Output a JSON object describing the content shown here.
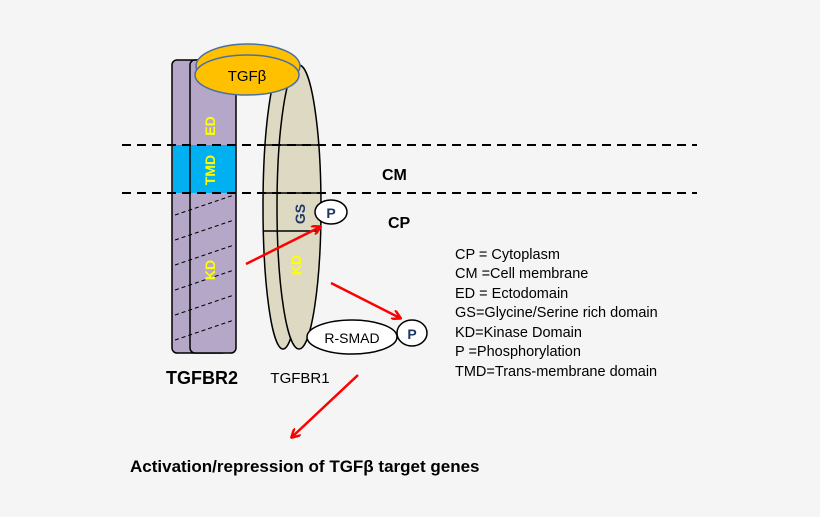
{
  "ligand": {
    "label": "TGFβ",
    "color": "#ffc000"
  },
  "receptor2": {
    "label": "TGFBR2",
    "domains": {
      "ed": "ED",
      "tmd": "TMD",
      "kd": "KD"
    },
    "color": "#b4a7c8",
    "tmd_color": "#00b0f0"
  },
  "receptor1": {
    "label": "TGFBR1",
    "domains": {
      "gs": "GS",
      "kd": "KD"
    },
    "color": "#ddd9c3"
  },
  "phospho": "P",
  "rsmad": {
    "label": "R-SMAD",
    "phospho": "P"
  },
  "regions": {
    "cm": "CM",
    "cp": "CP"
  },
  "legend": [
    "CP = Cytoplasm",
    "CM =Cell membrane",
    "ED = Ectodomain",
    "GS=Glycine/Serine rich domain",
    "KD=Kinase Domain",
    "P =Phosphorylation",
    "TMD=Trans-membrane domain"
  ],
  "outcome": "Activation/repression of TGFβ target genes",
  "arrow_color": "#ff0000"
}
